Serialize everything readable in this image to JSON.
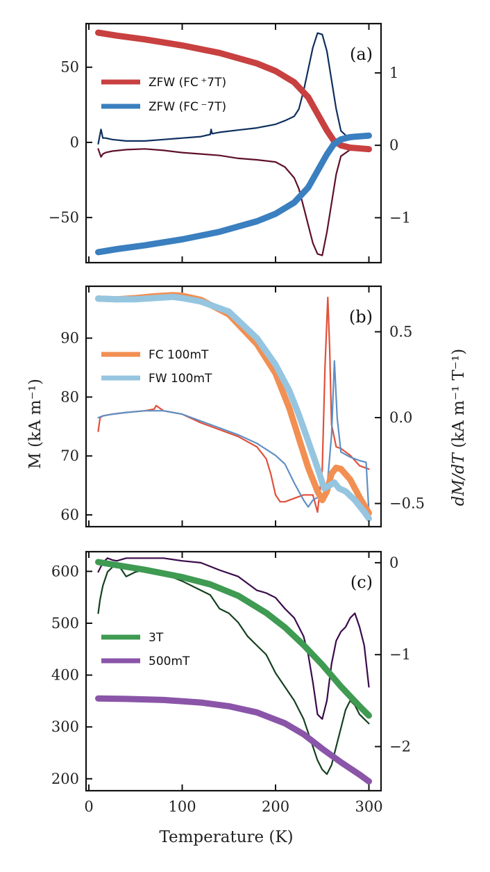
{
  "figure": {
    "xlabel": "Temperature (K)",
    "ylabel_left": "M (kA m⁻¹)",
    "ylabel_right_main": "dM/dT",
    "ylabel_right_units": " (kA m⁻¹ T⁻¹)"
  },
  "chart_data": [
    {
      "type": "line",
      "panel_label": "(a)",
      "xlim": [
        -3,
        313
      ],
      "ylim_left": [
        -80,
        79
      ],
      "ylim_right": [
        -1.62,
        1.68
      ],
      "xticks": [
        0,
        100,
        200,
        300
      ],
      "yticks_left": [
        50,
        0,
        -50
      ],
      "ytick_labels_left": [
        "50",
        "0",
        "−50"
      ],
      "yticks_right": [
        1,
        0,
        -1
      ],
      "ytick_labels_right": [
        "1",
        "0",
        "−1"
      ],
      "legend": [
        {
          "label": "ZFW (FC ⁺7T)",
          "color": "#c84040"
        },
        {
          "label": "ZFW (FC ⁻7T)",
          "color": "#3a7fbf"
        }
      ],
      "series": [
        {
          "name": "ZFW (FC +7T)",
          "axis": "left",
          "style": "thick",
          "color": "#c84040",
          "x": [
            10,
            30,
            60,
            100,
            140,
            180,
            200,
            220,
            235,
            245,
            255,
            262,
            270,
            280,
            300
          ],
          "y": [
            73,
            71,
            68.5,
            64.5,
            59.5,
            52.5,
            47.5,
            40,
            30,
            19,
            8,
            1.5,
            -2,
            -3.5,
            -4.5
          ]
        },
        {
          "name": "ZFW (FC -7T)",
          "axis": "left",
          "style": "thick",
          "color": "#3a7fbf",
          "x": [
            10,
            30,
            60,
            100,
            140,
            180,
            200,
            220,
            235,
            245,
            255,
            262,
            270,
            280,
            300
          ],
          "y": [
            -73,
            -71,
            -68.5,
            -64.5,
            -59.5,
            -52.5,
            -47.5,
            -40,
            -30,
            -19,
            -8,
            -1.5,
            2,
            3.5,
            4.5
          ]
        },
        {
          "name": "dM/dT (FC +7T)",
          "axis": "right",
          "style": "thin",
          "color": "#0e2f5e",
          "x": [
            10,
            13,
            15,
            18,
            25,
            40,
            60,
            80,
            100,
            120,
            130,
            131,
            132,
            140,
            160,
            180,
            200,
            210,
            220,
            225,
            230,
            235,
            240,
            245,
            250,
            255,
            260,
            265,
            270,
            280,
            290,
            300
          ],
          "y": [
            0.02,
            0.22,
            0.1,
            0.1,
            0.08,
            0.06,
            0.06,
            0.08,
            0.1,
            0.12,
            0.15,
            0.22,
            0.16,
            0.18,
            0.21,
            0.24,
            0.29,
            0.34,
            0.4,
            0.5,
            0.75,
            1.05,
            1.35,
            1.55,
            1.53,
            1.3,
            0.9,
            0.5,
            0.2,
            0.08,
            0.1,
            0.12
          ]
        },
        {
          "name": "dM/dT (FC -7T)",
          "axis": "right",
          "style": "thin",
          "color": "#5e0f2a",
          "x": [
            10,
            13,
            15,
            18,
            25,
            40,
            60,
            80,
            100,
            120,
            140,
            160,
            180,
            200,
            210,
            220,
            225,
            230,
            235,
            240,
            245,
            250,
            255,
            260,
            265,
            270,
            280,
            290,
            300
          ],
          "y": [
            -0.05,
            -0.16,
            -0.12,
            -0.1,
            -0.08,
            -0.06,
            -0.05,
            -0.07,
            -0.1,
            -0.12,
            -0.14,
            -0.18,
            -0.2,
            -0.23,
            -0.3,
            -0.45,
            -0.6,
            -0.85,
            -1.1,
            -1.35,
            -1.5,
            -1.52,
            -1.2,
            -0.8,
            -0.4,
            -0.15,
            -0.06,
            -0.05,
            -0.06
          ]
        }
      ]
    },
    {
      "type": "line",
      "panel_label": "(b)",
      "xlim": [
        -3,
        313
      ],
      "ylim_left": [
        58,
        98.8
      ],
      "ylim_right": [
        -0.635,
        0.765
      ],
      "xticks": [
        0,
        100,
        200,
        300
      ],
      "yticks_left": [
        90,
        80,
        70,
        60
      ],
      "ytick_labels_left": [
        "90",
        "80",
        "70",
        "60"
      ],
      "yticks_right": [
        0.5,
        0,
        -0.5
      ],
      "ytick_labels_right": [
        "0.5",
        "0.0",
        "−0.5"
      ],
      "legend": [
        {
          "label": "FC  100mT",
          "color": "#f28f52"
        },
        {
          "label": "FW 100mT",
          "color": "#96c5e0"
        }
      ],
      "series": [
        {
          "name": "FC 100mT",
          "axis": "left",
          "style": "thick",
          "color": "#f28f52",
          "x": [
            10,
            30,
            50,
            70,
            90,
            100,
            120,
            150,
            180,
            200,
            215,
            225,
            235,
            245,
            250,
            255,
            260,
            265,
            270,
            280,
            290,
            300
          ],
          "y": [
            96.7,
            96.6,
            96.8,
            97.1,
            97.3,
            97.2,
            96.5,
            94,
            89,
            84,
            78,
            73,
            68,
            64,
            62.5,
            64,
            67,
            68,
            67.8,
            66,
            63,
            60.3
          ]
        },
        {
          "name": "FW 100mT",
          "axis": "left",
          "style": "thick",
          "color": "#96c5e0",
          "x": [
            10,
            30,
            50,
            70,
            90,
            100,
            120,
            150,
            180,
            200,
            215,
            225,
            235,
            245,
            252,
            258,
            263,
            268,
            275,
            285,
            295,
            300
          ],
          "y": [
            96.7,
            96.6,
            96.6,
            96.8,
            97,
            96.8,
            96.2,
            94.5,
            90,
            85.5,
            81,
            77,
            72.5,
            68,
            64.5,
            65,
            65.5,
            64.5,
            64,
            62.5,
            60.5,
            59.4
          ]
        },
        {
          "name": "dM/dT FC 100mT",
          "axis": "right",
          "style": "thin",
          "color": "#e0503a",
          "x": [
            10,
            12,
            15,
            25,
            40,
            60,
            70,
            72,
            80,
            100,
            120,
            140,
            160,
            180,
            190,
            195,
            200,
            205,
            210,
            220,
            230,
            240,
            245,
            250,
            253,
            256,
            258,
            260,
            265,
            270,
            280,
            290,
            300
          ],
          "y": [
            -0.08,
            0.0,
            0.01,
            0.02,
            0.03,
            0.04,
            0.05,
            0.07,
            0.04,
            0.02,
            -0.03,
            -0.07,
            -0.11,
            -0.17,
            -0.24,
            -0.33,
            -0.45,
            -0.49,
            -0.49,
            -0.47,
            -0.45,
            -0.45,
            -0.55,
            -0.3,
            0.3,
            0.7,
            0.4,
            -0.04,
            -0.17,
            -0.18,
            -0.22,
            -0.28,
            -0.3
          ]
        },
        {
          "name": "dM/dT FW 100mT",
          "axis": "right",
          "style": "thin",
          "color": "#5f8fc4",
          "x": [
            10,
            15,
            25,
            40,
            60,
            80,
            100,
            120,
            140,
            160,
            180,
            200,
            210,
            220,
            230,
            235,
            240,
            250,
            255,
            260,
            263,
            266,
            270,
            280,
            290,
            297,
            300
          ],
          "y": [
            0.0,
            0.01,
            0.02,
            0.03,
            0.04,
            0.04,
            0.02,
            -0.02,
            -0.06,
            -0.1,
            -0.15,
            -0.22,
            -0.27,
            -0.38,
            -0.48,
            -0.52,
            -0.48,
            -0.45,
            -0.42,
            -0.1,
            0.33,
            0.0,
            -0.2,
            -0.23,
            -0.25,
            -0.26,
            -0.55
          ]
        }
      ]
    },
    {
      "type": "line",
      "panel_label": "(c)",
      "xlim": [
        -3,
        313
      ],
      "ylim_left": [
        177,
        638
      ],
      "ylim_right": [
        -2.48,
        0.12
      ],
      "xticks": [
        0,
        100,
        200,
        300
      ],
      "xtick_labels": [
        "0",
        "100",
        "200",
        "300"
      ],
      "yticks_left": [
        600,
        500,
        400,
        300,
        200
      ],
      "ytick_labels_left": [
        "600",
        "500",
        "400",
        "300",
        "200"
      ],
      "yticks_right": [
        0,
        -1,
        -2
      ],
      "ytick_labels_right": [
        "0",
        "−1",
        "−2"
      ],
      "legend": [
        {
          "label": "3T",
          "color": "#3f9a52"
        },
        {
          "label": "500mT",
          "color": "#8a55a8"
        }
      ],
      "series": [
        {
          "name": "3T",
          "axis": "left",
          "style": "thick",
          "color": "#3f9a52",
          "x": [
            10,
            30,
            60,
            100,
            130,
            160,
            190,
            210,
            230,
            250,
            270,
            290,
            300
          ],
          "y": [
            618,
            612,
            603,
            589,
            575,
            553,
            520,
            492,
            458,
            420,
            378,
            340,
            322
          ]
        },
        {
          "name": "500mT",
          "axis": "left",
          "style": "thick",
          "color": "#8a55a8",
          "x": [
            10,
            40,
            80,
            120,
            150,
            180,
            210,
            230,
            250,
            270,
            290,
            300
          ],
          "y": [
            355,
            354,
            352,
            347,
            340,
            328,
            307,
            286,
            258,
            232,
            208,
            195
          ]
        },
        {
          "name": "dM/dT 3T",
          "axis": "right",
          "style": "thin",
          "color": "#14401f",
          "x": [
            10,
            12,
            15,
            20,
            25,
            30,
            40,
            50,
            60,
            70,
            80,
            100,
            120,
            130,
            140,
            150,
            160,
            170,
            180,
            190,
            200,
            210,
            220,
            230,
            240,
            245,
            250,
            255,
            260,
            265,
            270,
            275,
            280,
            285,
            290,
            295,
            300
          ],
          "y": [
            -0.55,
            -0.4,
            -0.25,
            -0.1,
            -0.05,
            0.0,
            -0.15,
            -0.1,
            -0.08,
            -0.12,
            -0.12,
            -0.2,
            -0.3,
            -0.35,
            -0.5,
            -0.55,
            -0.65,
            -0.8,
            -0.9,
            -1.0,
            -1.2,
            -1.35,
            -1.5,
            -1.7,
            -2.0,
            -2.15,
            -2.25,
            -2.3,
            -2.2,
            -2.0,
            -1.8,
            -1.6,
            -1.5,
            -1.55,
            -1.65,
            -1.7,
            -1.75
          ]
        },
        {
          "name": "dM/dT 500mT",
          "axis": "right",
          "style": "thin",
          "color": "#3a0a4a",
          "x": [
            10,
            15,
            20,
            25,
            30,
            40,
            60,
            80,
            100,
            120,
            140,
            160,
            180,
            190,
            200,
            210,
            220,
            230,
            235,
            240,
            245,
            250,
            255,
            260,
            265,
            270,
            275,
            280,
            285,
            290,
            295,
            300
          ],
          "y": [
            -0.1,
            0.0,
            0.05,
            0.03,
            0.02,
            0.05,
            0.05,
            0.05,
            0.02,
            0.0,
            -0.08,
            -0.15,
            -0.3,
            -0.33,
            -0.38,
            -0.5,
            -0.6,
            -0.8,
            -1.0,
            -1.3,
            -1.65,
            -1.7,
            -1.5,
            -1.1,
            -0.85,
            -0.75,
            -0.7,
            -0.6,
            -0.55,
            -0.7,
            -0.9,
            -1.35
          ]
        }
      ]
    }
  ]
}
